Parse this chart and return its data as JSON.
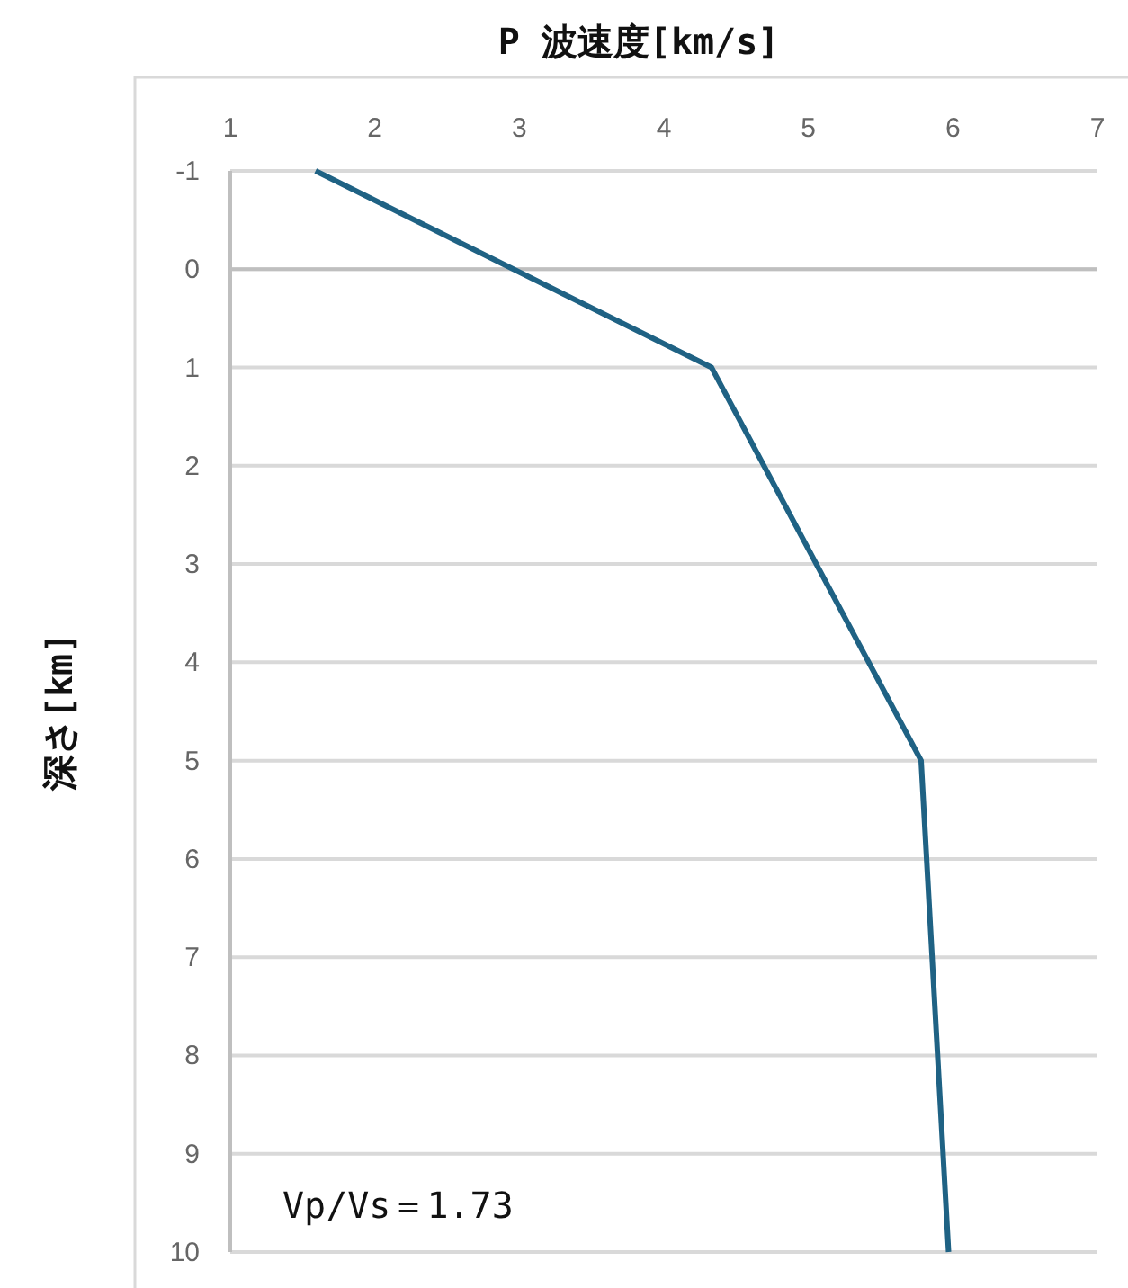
{
  "chart_data": {
    "type": "line",
    "xlabel": "P 波速度[km/s]",
    "ylabel": "深さ[km]",
    "x": [
      1.59,
      4.33,
      5.78,
      5.97
    ],
    "series": [
      {
        "color": "#1f6284",
        "values": [
          -1,
          1,
          5,
          10
        ]
      }
    ],
    "xlim": [
      1,
      7
    ],
    "xticks": [
      1,
      2,
      3,
      4,
      5,
      6,
      7
    ],
    "ylim": [
      10,
      -1
    ],
    "yticks": [
      -1,
      0,
      1,
      2,
      3,
      4,
      5,
      6,
      7,
      8,
      9,
      10
    ],
    "grid": "y",
    "marker": "none",
    "line_style": "solid",
    "annotations": [
      "Vp/Vs＝1.73"
    ]
  }
}
